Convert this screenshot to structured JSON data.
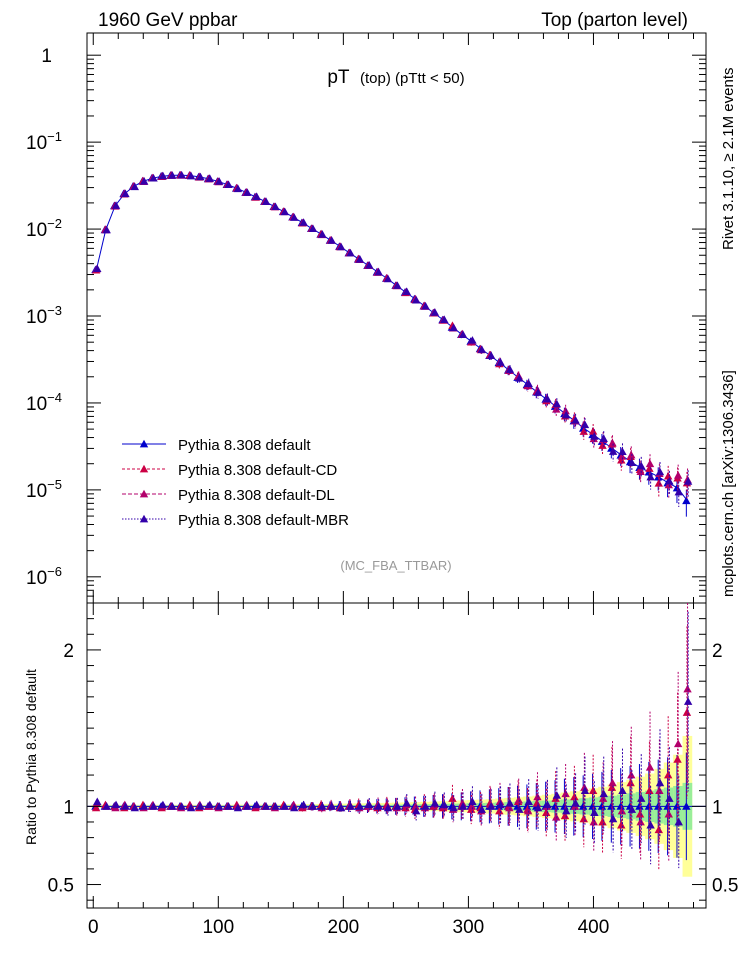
{
  "header": {
    "left": "1960 GeV ppbar",
    "right": "Top (parton level)"
  },
  "side_labels": {
    "rivet": "Rivet 3.1.10, ≥ 2.1M events",
    "source": "mcplots.cern.ch [arXiv:1306.3436]"
  },
  "colors": {
    "default": "#0000cc",
    "cd": "#cc0044",
    "dl": "#b3006b",
    "mbr": "#3300aa",
    "band_yellow": "#ffff99",
    "band_green": "#99ee99"
  },
  "chart_data": {
    "type": "scatter",
    "title": "pT",
    "title_suffix": "(top) (pTtt < 50)",
    "analysis_tag": "(MC_FBA_TTBAR)",
    "x_range": [
      -5,
      490
    ],
    "x_ticks": [
      0,
      100,
      200,
      300,
      400
    ],
    "main": {
      "yscale": "log",
      "ylim": [
        5e-07,
        1.8
      ],
      "ytick_labels": [
        {
          "value": 1,
          "base": "1",
          "exp": ""
        },
        {
          "value": 0.1,
          "base": "10",
          "exp": "−1"
        },
        {
          "value": 0.01,
          "base": "10",
          "exp": "−2"
        },
        {
          "value": 0.001,
          "base": "10",
          "exp": "−3"
        },
        {
          "value": 0.0001,
          "base": "10",
          "exp": "−4"
        },
        {
          "value": 1e-05,
          "base": "10",
          "exp": "−5"
        },
        {
          "value": 1e-06,
          "base": "10",
          "exp": "−6"
        }
      ],
      "legend_position": "lower-left",
      "x": [
        2.5,
        10,
        17.5,
        25,
        32.5,
        40,
        47.5,
        55,
        62.5,
        70,
        77.5,
        85,
        92.5,
        100,
        107.5,
        115,
        122.5,
        130,
        137.5,
        145,
        152.5,
        160,
        167.5,
        175,
        182.5,
        190,
        197.5,
        205,
        212.5,
        220,
        227.5,
        235,
        242.5,
        250,
        257.5,
        265,
        272.5,
        280,
        287.5,
        295,
        302.5,
        310,
        317.5,
        325,
        332.5,
        340,
        347.5,
        355,
        362.5,
        370,
        377.5,
        385,
        392.5,
        400,
        407.5,
        415,
        422.5,
        430,
        437.5,
        445,
        452.5,
        460,
        467.5,
        475
      ],
      "series": [
        {
          "name": "Pythia 8.308 default",
          "key": "default",
          "values": [
            0.0034,
            0.0098,
            0.0185,
            0.0255,
            0.031,
            0.0355,
            0.0385,
            0.0405,
            0.0415,
            0.0418,
            0.0412,
            0.0398,
            0.0378,
            0.0353,
            0.0324,
            0.0294,
            0.0263,
            0.0234,
            0.0207,
            0.0181,
            0.0158,
            0.0137,
            0.0118,
            0.0101,
            0.0087,
            0.0074,
            0.0063,
            0.0053,
            0.0045,
            0.0038,
            0.0032,
            0.0027,
            0.00224,
            0.00187,
            0.00157,
            0.0013,
            0.00108,
            0.0009,
            0.00074,
            0.00061,
            0.00051,
            0.00042,
            0.00035,
            0.00029,
            0.000238,
            0.000196,
            0.000162,
            0.000133,
            0.00011,
            9.1e-05,
            7.5e-05,
            6.2e-05,
            5.1e-05,
            4.3e-05,
            3.6e-05,
            3e-05,
            2.5e-05,
            2.1e-05,
            1.8e-05,
            1.6e-05,
            1.4e-05,
            1.2e-05,
            1.05e-05,
            7.5e-06
          ]
        },
        {
          "name": "Pythia 8.308 default-CD",
          "key": "cd",
          "ratios": [
            0.99,
            1.01,
            1.0,
            0.99,
            1.0,
            1.01,
            1.0,
            0.99,
            1.0,
            1.0,
            1.01,
            0.99,
            1.0,
            1.0,
            1.0,
            1.01,
            1.0,
            0.99,
            1.0,
            1.0,
            1.01,
            1.0,
            0.99,
            1.0,
            1.01,
            1.0,
            0.99,
            1.0,
            1.01,
            1.0,
            0.99,
            1.01,
            1.0,
            0.99,
            0.98,
            1.01,
            1.0,
            0.99,
            1.05,
            1.0,
            0.98,
            0.99,
            1.02,
            0.97,
            1.0,
            1.03,
            0.98,
            1.02,
            0.96,
            1.05,
            0.94,
            1.06,
            0.92,
            1.1,
            0.9,
            1.12,
            0.88,
            1.15,
            0.95,
            1.1,
            0.85,
            1.2,
            1.3,
            1.6
          ]
        },
        {
          "name": "Pythia 8.308 default-DL",
          "key": "dl",
          "ratios": [
            1.02,
            1.0,
            0.99,
            1.01,
            1.0,
            0.99,
            1.01,
            1.0,
            1.0,
            0.99,
            1.0,
            1.01,
            1.0,
            0.99,
            1.0,
            1.0,
            1.01,
            1.0,
            1.0,
            0.99,
            1.0,
            1.01,
            1.0,
            1.0,
            0.99,
            1.01,
            1.0,
            1.01,
            0.99,
            1.0,
            1.01,
            1.0,
            0.99,
            1.01,
            1.0,
            0.99,
            1.01,
            1.0,
            0.98,
            1.02,
            1.0,
            0.97,
            1.01,
            1.03,
            0.99,
            1.04,
            0.97,
            1.06,
            1.0,
            0.93,
            1.08,
            1.0,
            1.12,
            0.9,
            1.05,
            1.15,
            0.97,
            1.2,
            0.9,
            1.25,
            1.1,
            0.95,
            1.4,
            1.75
          ]
        },
        {
          "name": "Pythia 8.308 default-MBR",
          "key": "mbr",
          "ratios": [
            1.03,
            1.0,
            1.01,
            1.0,
            0.99,
            1.0,
            1.0,
            1.01,
            1.0,
            1.0,
            0.99,
            1.0,
            1.01,
            1.0,
            1.0,
            0.99,
            1.0,
            1.01,
            1.0,
            1.0,
            1.0,
            0.99,
            1.01,
            1.0,
            1.0,
            1.0,
            0.99,
            1.0,
            1.0,
            1.01,
            1.0,
            0.99,
            1.0,
            1.02,
            0.97,
            1.0,
            1.02,
            1.01,
            0.99,
            1.0,
            1.03,
            0.98,
            1.0,
            1.01,
            1.02,
            0.98,
            1.03,
            0.99,
            1.01,
            1.07,
            0.97,
            1.02,
            1.1,
            0.96,
            1.08,
            0.92,
            1.1,
            0.98,
            1.05,
            0.88,
            1.15,
            1.05,
            0.9,
            1.67
          ]
        }
      ]
    },
    "ratio": {
      "ylabel": "Ratio to Pythia 8.308 default",
      "ylim": [
        0.35,
        2.3
      ],
      "ytick_labels": [
        {
          "value": 0.5,
          "label": "0.5"
        },
        {
          "value": 1,
          "label": "1"
        },
        {
          "value": 2,
          "label": "2"
        }
      ],
      "band_inner_halfwidth": [
        0.005,
        0.005,
        0.005,
        0.005,
        0.005,
        0.005,
        0.005,
        0.005,
        0.005,
        0.005,
        0.005,
        0.005,
        0.005,
        0.005,
        0.005,
        0.005,
        0.005,
        0.005,
        0.005,
        0.005,
        0.006,
        0.006,
        0.006,
        0.007,
        0.007,
        0.007,
        0.008,
        0.008,
        0.009,
        0.009,
        0.01,
        0.01,
        0.011,
        0.012,
        0.013,
        0.014,
        0.015,
        0.016,
        0.017,
        0.018,
        0.02,
        0.021,
        0.023,
        0.025,
        0.027,
        0.029,
        0.031,
        0.034,
        0.037,
        0.04,
        0.044,
        0.048,
        0.052,
        0.057,
        0.062,
        0.068,
        0.075,
        0.083,
        0.092,
        0.1,
        0.11,
        0.12,
        0.13,
        0.15
      ],
      "band_outer_halfwidth": [
        0.01,
        0.01,
        0.01,
        0.01,
        0.01,
        0.01,
        0.01,
        0.01,
        0.01,
        0.01,
        0.01,
        0.01,
        0.01,
        0.01,
        0.01,
        0.011,
        0.011,
        0.011,
        0.012,
        0.012,
        0.013,
        0.013,
        0.014,
        0.014,
        0.015,
        0.016,
        0.017,
        0.018,
        0.019,
        0.02,
        0.021,
        0.022,
        0.024,
        0.025,
        0.027,
        0.029,
        0.031,
        0.033,
        0.035,
        0.038,
        0.04,
        0.043,
        0.046,
        0.05,
        0.054,
        0.058,
        0.063,
        0.068,
        0.074,
        0.08,
        0.088,
        0.096,
        0.105,
        0.115,
        0.125,
        0.14,
        0.155,
        0.17,
        0.19,
        0.21,
        0.24,
        0.28,
        0.33,
        0.45
      ]
    }
  }
}
